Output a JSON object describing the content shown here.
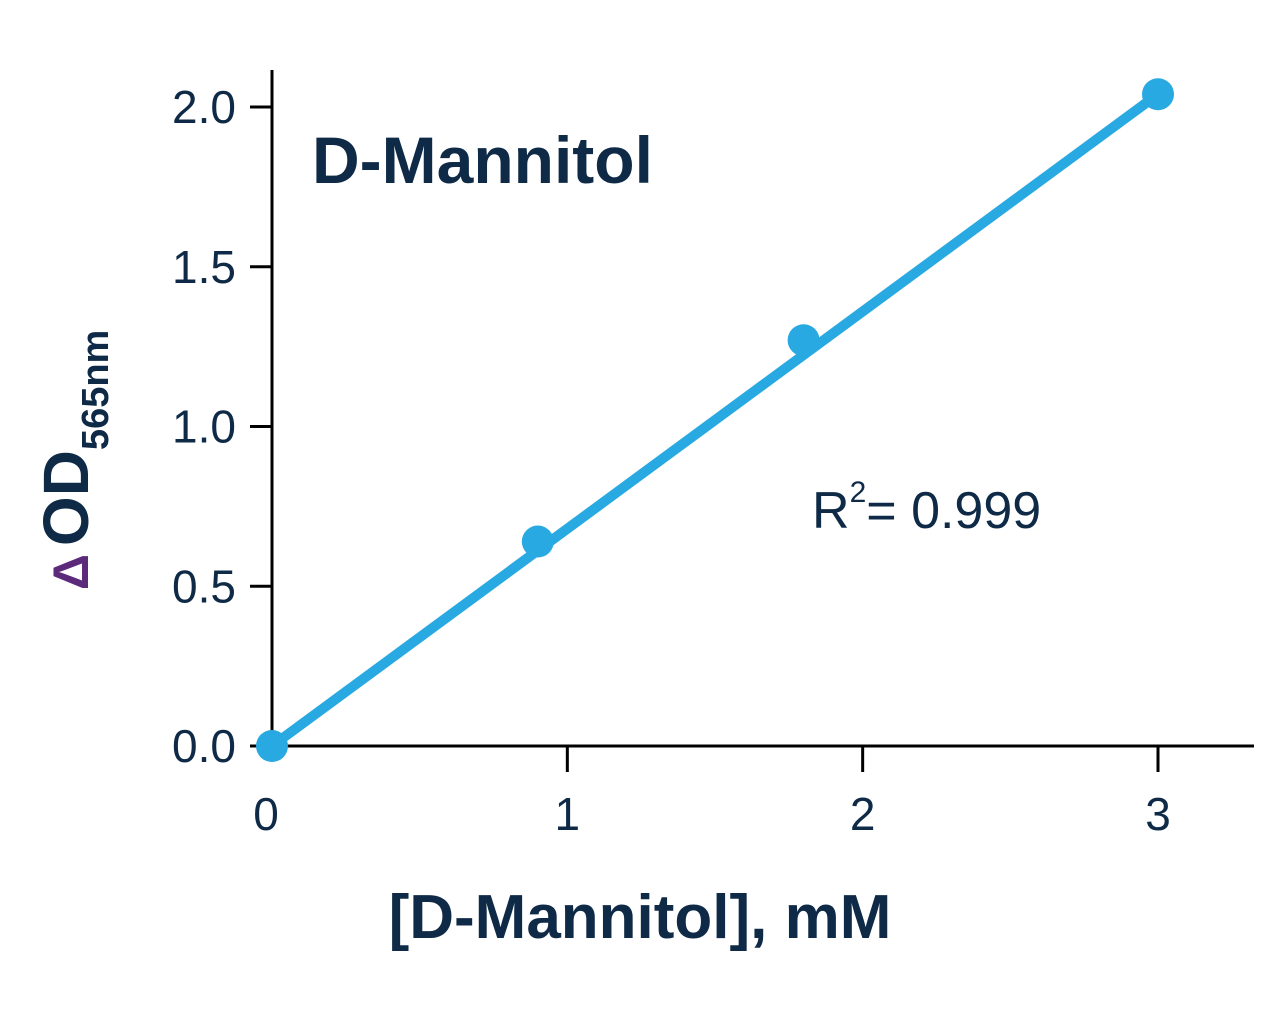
{
  "chart_data": {
    "type": "scatter",
    "title": "D-Mannitol",
    "xlabel": "[D-Mannitol], mM",
    "ylabel_delta": "Δ",
    "ylabel_main": "OD",
    "ylabel_sub": "565nm",
    "annotation_r_base": "R",
    "annotation_r_sup": "2",
    "annotation_r_rest": "= 0.999",
    "xlim": [
      0,
      3.3
    ],
    "ylim": [
      0,
      2.1
    ],
    "x_ticks": [
      0,
      1,
      2,
      3
    ],
    "x_tick_labels": [
      "0",
      "1",
      "2",
      "3"
    ],
    "y_ticks": [
      0,
      0.5,
      1.0,
      1.5,
      2.0
    ],
    "y_tick_labels": [
      "0.0",
      "0.5",
      "1.0",
      "1.5",
      "2.0"
    ],
    "series": [
      {
        "x": [
          0,
          0.9,
          1.8,
          3.0
        ],
        "y": [
          0.0,
          0.64,
          1.27,
          2.04
        ]
      }
    ],
    "fit_line": {
      "x": [
        0,
        3.0
      ],
      "y": [
        0.0,
        2.04
      ]
    },
    "colors": {
      "series": "#29a9e1",
      "text": "#0e2a47",
      "delta": "#5b2a7a",
      "axis": "#000000"
    }
  }
}
